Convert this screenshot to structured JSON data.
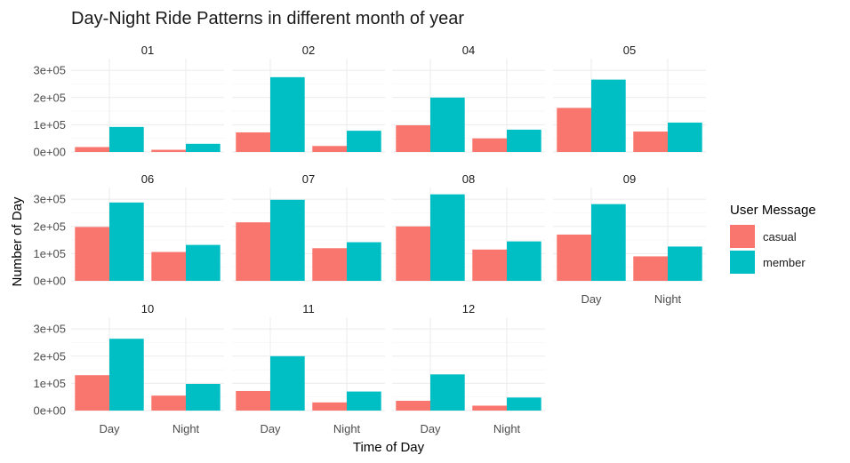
{
  "chart_data": {
    "type": "bar",
    "title": "Day-Night Ride Patterns in different month of year",
    "xlabel": "Time of Day",
    "ylabel": "Number of Day",
    "categories": [
      "Day",
      "Night"
    ],
    "y_ticks": [
      "0e+00",
      "1e+05",
      "2e+05",
      "3e+05"
    ],
    "ylim": [
      0,
      330000
    ],
    "legend": {
      "title": "User Message",
      "placement": "right",
      "items": [
        {
          "name": "casual",
          "color": "#F8766D"
        },
        {
          "name": "member",
          "color": "#00BFC4"
        }
      ]
    },
    "facets": [
      {
        "label": "01",
        "casual": [
          18000,
          8000
        ],
        "member": [
          92000,
          30000
        ]
      },
      {
        "label": "02",
        "casual": [
          72000,
          22000
        ],
        "member": [
          275000,
          78000
        ]
      },
      {
        "label": "04",
        "casual": [
          98000,
          50000
        ],
        "member": [
          200000,
          82000
        ]
      },
      {
        "label": "05",
        "casual": [
          162000,
          75000
        ],
        "member": [
          266000,
          108000
        ]
      },
      {
        "label": "06",
        "casual": [
          198000,
          106000
        ],
        "member": [
          288000,
          132000
        ]
      },
      {
        "label": "07",
        "casual": [
          215000,
          120000
        ],
        "member": [
          298000,
          142000
        ]
      },
      {
        "label": "08",
        "casual": [
          200000,
          115000
        ],
        "member": [
          318000,
          145000
        ]
      },
      {
        "label": "09",
        "casual": [
          170000,
          90000
        ],
        "member": [
          282000,
          126000
        ]
      },
      {
        "label": "10",
        "casual": [
          130000,
          55000
        ],
        "member": [
          264000,
          98000
        ]
      },
      {
        "label": "11",
        "casual": [
          72000,
          30000
        ],
        "member": [
          200000,
          70000
        ]
      },
      {
        "label": "12",
        "casual": [
          36000,
          18000
        ],
        "member": [
          133000,
          48000
        ]
      }
    ]
  }
}
